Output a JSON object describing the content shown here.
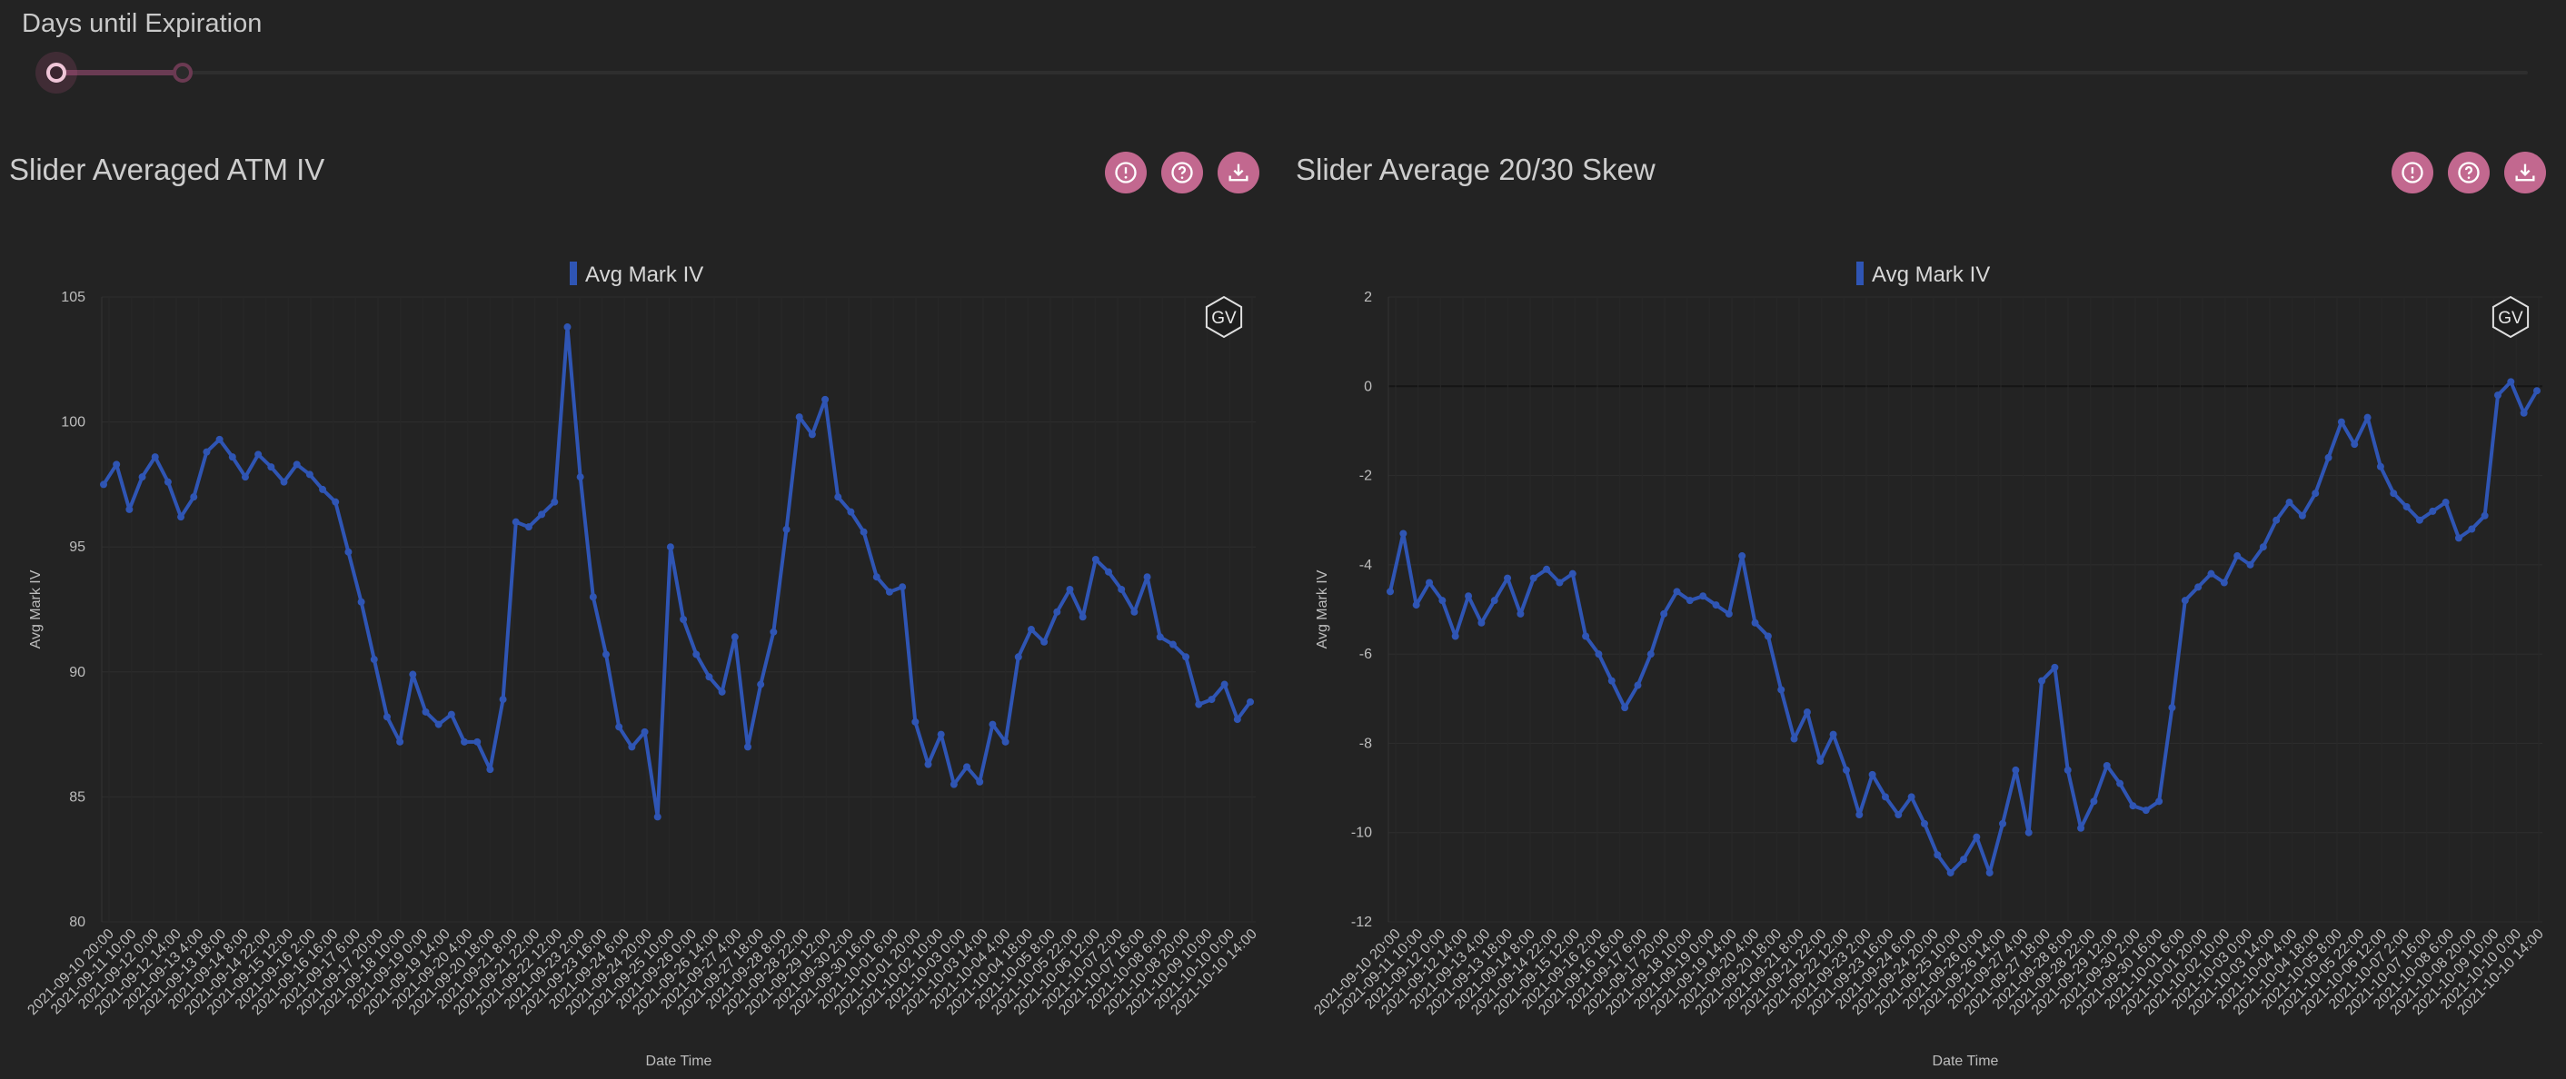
{
  "slider": {
    "label": "Days until Expiration"
  },
  "charts": [
    {
      "title": "Slider Averaged ATM IV",
      "legend": "Avg Mark IV",
      "badge": "GV",
      "ylabel": "Avg Mark IV",
      "xlabel": "Date Time",
      "icons": [
        "alert-icon",
        "help-icon",
        "download-icon"
      ]
    },
    {
      "title": "Slider Average 20/30 Skew",
      "legend": "Avg Mark IV",
      "badge": "GV",
      "ylabel": "Avg Mark IV",
      "xlabel": "Date Time",
      "icons": [
        "alert-icon",
        "help-icon",
        "download-icon"
      ]
    }
  ],
  "colors": {
    "series": "#2f55b4",
    "accent": "#c2688f",
    "background": "#232323"
  },
  "x_tick_labels": [
    "2021-09-10 20:00",
    "2021-09-11 10:00",
    "2021-09-12 0:00",
    "2021-09-12 14:00",
    "2021-09-13 4:00",
    "2021-09-13 18:00",
    "2021-09-14 8:00",
    "2021-09-14 22:00",
    "2021-09-15 12:00",
    "2021-09-16 2:00",
    "2021-09-16 16:00",
    "2021-09-17 6:00",
    "2021-09-17 20:00",
    "2021-09-18 10:00",
    "2021-09-19 0:00",
    "2021-09-19 14:00",
    "2021-09-20 4:00",
    "2021-09-20 18:00",
    "2021-09-21 8:00",
    "2021-09-21 22:00",
    "2021-09-22 12:00",
    "2021-09-23 2:00",
    "2021-09-23 16:00",
    "2021-09-24 6:00",
    "2021-09-24 20:00",
    "2021-09-25 10:00",
    "2021-09-26 0:00",
    "2021-09-26 14:00",
    "2021-09-27 4:00",
    "2021-09-27 18:00",
    "2021-09-28 8:00",
    "2021-09-28 22:00",
    "2021-09-29 12:00",
    "2021-09-30 2:00",
    "2021-09-30 16:00",
    "2021-10-01 6:00",
    "2021-10-01 20:00",
    "2021-10-02 10:00",
    "2021-10-03 0:00",
    "2021-10-03 14:00",
    "2021-10-04 4:00",
    "2021-10-04 18:00",
    "2021-10-05 8:00",
    "2021-10-05 22:00",
    "2021-10-06 12:00",
    "2021-10-07 2:00",
    "2021-10-07 16:00",
    "2021-10-08 6:00",
    "2021-10-08 20:00",
    "2021-10-09 10:00",
    "2021-10-10 0:00",
    "2021-10-10 14:00"
  ],
  "chart_data": [
    {
      "type": "line",
      "ylim": [
        80,
        105
      ],
      "yticks": [
        80,
        85,
        90,
        95,
        100,
        105
      ],
      "grid": true,
      "legend_position": "top-center",
      "series": [
        {
          "name": "Avg Mark IV",
          "values": [
            97.5,
            98.3,
            96.5,
            97.8,
            98.6,
            97.6,
            96.2,
            97.0,
            98.8,
            99.3,
            98.6,
            97.8,
            98.7,
            98.2,
            97.6,
            98.3,
            97.9,
            97.3,
            96.8,
            94.8,
            92.8,
            90.5,
            88.2,
            87.2,
            89.9,
            88.4,
            87.9,
            88.3,
            87.2,
            87.2,
            86.1,
            88.9,
            96.0,
            95.8,
            96.3,
            96.8,
            103.8,
            97.8,
            93.0,
            90.7,
            87.8,
            87.0,
            87.6,
            84.2,
            95.0,
            92.1,
            90.7,
            89.8,
            89.2,
            91.4,
            87.0,
            89.5,
            91.6,
            95.7,
            100.2,
            99.5,
            100.9,
            97.0,
            96.4,
            95.6,
            93.8,
            93.2,
            93.4,
            88.0,
            86.3,
            87.5,
            85.5,
            86.2,
            85.6,
            87.9,
            87.2,
            90.6,
            91.7,
            91.2,
            92.4,
            93.3,
            92.2,
            94.5,
            94.0,
            93.3,
            92.4,
            93.8,
            91.4,
            91.1,
            90.6,
            88.7,
            88.9,
            89.5,
            88.1,
            88.8
          ]
        }
      ]
    },
    {
      "type": "line",
      "ylim": [
        -12,
        2
      ],
      "yticks": [
        -12,
        -10,
        -8,
        -6,
        -4,
        -2,
        0,
        2
      ],
      "grid": true,
      "legend_position": "top-center",
      "series": [
        {
          "name": "Avg Mark IV",
          "values": [
            -4.6,
            -3.3,
            -4.9,
            -4.4,
            -4.8,
            -5.6,
            -4.7,
            -5.3,
            -4.8,
            -4.3,
            -5.1,
            -4.3,
            -4.1,
            -4.4,
            -4.2,
            -5.6,
            -6.0,
            -6.6,
            -7.2,
            -6.7,
            -6.0,
            -5.1,
            -4.6,
            -4.8,
            -4.7,
            -4.9,
            -5.1,
            -3.8,
            -5.3,
            -5.6,
            -6.8,
            -7.9,
            -7.3,
            -8.4,
            -7.8,
            -8.6,
            -9.6,
            -8.7,
            -9.2,
            -9.6,
            -9.2,
            -9.8,
            -10.5,
            -10.9,
            -10.6,
            -10.1,
            -10.9,
            -9.8,
            -8.6,
            -10.0,
            -6.6,
            -6.3,
            -8.6,
            -9.9,
            -9.3,
            -8.5,
            -8.9,
            -9.4,
            -9.5,
            -9.3,
            -7.2,
            -4.8,
            -4.5,
            -4.2,
            -4.4,
            -3.8,
            -4.0,
            -3.6,
            -3.0,
            -2.6,
            -2.9,
            -2.4,
            -1.6,
            -0.8,
            -1.3,
            -0.7,
            -1.8,
            -2.4,
            -2.7,
            -3.0,
            -2.8,
            -2.6,
            -3.4,
            -3.2,
            -2.9,
            -0.2,
            0.1,
            -0.6,
            -0.1
          ]
        }
      ]
    }
  ]
}
